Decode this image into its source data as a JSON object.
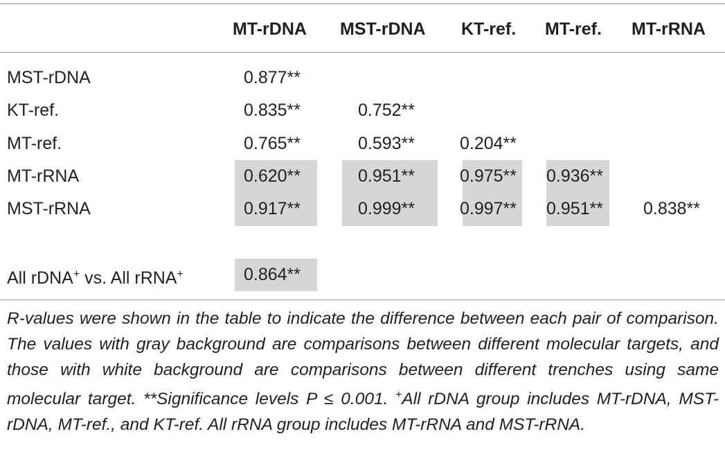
{
  "table": {
    "columns": [
      "MT-rDNA",
      "MST-rDNA",
      "KT-ref.",
      "MT-ref.",
      "MT-rRNA"
    ],
    "rows": [
      {
        "label": "MST-rDNA",
        "values": [
          "0.877**"
        ]
      },
      {
        "label": "KT-ref.",
        "values": [
          "0.835**",
          "0.752**"
        ]
      },
      {
        "label": "MT-ref.",
        "values": [
          "0.765**",
          "0.593**",
          "0.204**"
        ]
      },
      {
        "label": "MT-rRNA",
        "values": [
          "0.620**",
          "0.951**",
          "0.975**",
          "0.936**"
        ]
      },
      {
        "label": "MST-rRNA",
        "values": [
          "0.917**",
          "0.999**",
          "0.997**",
          "0.951**",
          "0.838**"
        ]
      }
    ],
    "summary": {
      "label": [
        "All rDNA",
        "+",
        " vs. All rRNA",
        "+"
      ],
      "values": [
        "0.864**"
      ]
    }
  },
  "footnote": [
    "R-values were shown in the table to indicate the difference between each pair of comparison. The values with gray background are comparisons between different molecular targets, and those with white background are comparisons between different trenches using same molecular target. **Significance levels P ≤ 0.001. ",
    "+",
    "All rDNA group includes MT-rDNA, MST-rDNA, MT-ref., and KT-ref. All rRNA group includes MT-rRNA and MST-rRNA."
  ]
}
